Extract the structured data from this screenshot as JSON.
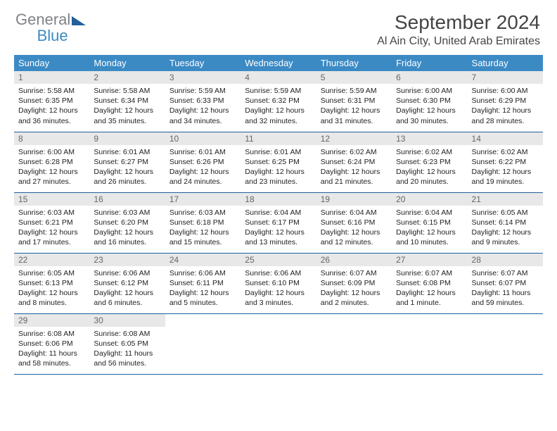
{
  "logo": {
    "line1": "General",
    "line2": "Blue"
  },
  "title": "September 2024",
  "location": "Al Ain City, United Arab Emirates",
  "colors": {
    "header_bg": "#3b8ac4",
    "header_text": "#ffffff",
    "daynum_bg": "#e8e8e8",
    "row_border": "#20619c",
    "body_text": "#222222"
  },
  "weekdays": [
    "Sunday",
    "Monday",
    "Tuesday",
    "Wednesday",
    "Thursday",
    "Friday",
    "Saturday"
  ],
  "weeks": [
    [
      {
        "n": "1",
        "sr": "Sunrise: 5:58 AM",
        "ss": "Sunset: 6:35 PM",
        "dl": "Daylight: 12 hours and 36 minutes."
      },
      {
        "n": "2",
        "sr": "Sunrise: 5:58 AM",
        "ss": "Sunset: 6:34 PM",
        "dl": "Daylight: 12 hours and 35 minutes."
      },
      {
        "n": "3",
        "sr": "Sunrise: 5:59 AM",
        "ss": "Sunset: 6:33 PM",
        "dl": "Daylight: 12 hours and 34 minutes."
      },
      {
        "n": "4",
        "sr": "Sunrise: 5:59 AM",
        "ss": "Sunset: 6:32 PM",
        "dl": "Daylight: 12 hours and 32 minutes."
      },
      {
        "n": "5",
        "sr": "Sunrise: 5:59 AM",
        "ss": "Sunset: 6:31 PM",
        "dl": "Daylight: 12 hours and 31 minutes."
      },
      {
        "n": "6",
        "sr": "Sunrise: 6:00 AM",
        "ss": "Sunset: 6:30 PM",
        "dl": "Daylight: 12 hours and 30 minutes."
      },
      {
        "n": "7",
        "sr": "Sunrise: 6:00 AM",
        "ss": "Sunset: 6:29 PM",
        "dl": "Daylight: 12 hours and 28 minutes."
      }
    ],
    [
      {
        "n": "8",
        "sr": "Sunrise: 6:00 AM",
        "ss": "Sunset: 6:28 PM",
        "dl": "Daylight: 12 hours and 27 minutes."
      },
      {
        "n": "9",
        "sr": "Sunrise: 6:01 AM",
        "ss": "Sunset: 6:27 PM",
        "dl": "Daylight: 12 hours and 26 minutes."
      },
      {
        "n": "10",
        "sr": "Sunrise: 6:01 AM",
        "ss": "Sunset: 6:26 PM",
        "dl": "Daylight: 12 hours and 24 minutes."
      },
      {
        "n": "11",
        "sr": "Sunrise: 6:01 AM",
        "ss": "Sunset: 6:25 PM",
        "dl": "Daylight: 12 hours and 23 minutes."
      },
      {
        "n": "12",
        "sr": "Sunrise: 6:02 AM",
        "ss": "Sunset: 6:24 PM",
        "dl": "Daylight: 12 hours and 21 minutes."
      },
      {
        "n": "13",
        "sr": "Sunrise: 6:02 AM",
        "ss": "Sunset: 6:23 PM",
        "dl": "Daylight: 12 hours and 20 minutes."
      },
      {
        "n": "14",
        "sr": "Sunrise: 6:02 AM",
        "ss": "Sunset: 6:22 PM",
        "dl": "Daylight: 12 hours and 19 minutes."
      }
    ],
    [
      {
        "n": "15",
        "sr": "Sunrise: 6:03 AM",
        "ss": "Sunset: 6:21 PM",
        "dl": "Daylight: 12 hours and 17 minutes."
      },
      {
        "n": "16",
        "sr": "Sunrise: 6:03 AM",
        "ss": "Sunset: 6:20 PM",
        "dl": "Daylight: 12 hours and 16 minutes."
      },
      {
        "n": "17",
        "sr": "Sunrise: 6:03 AM",
        "ss": "Sunset: 6:18 PM",
        "dl": "Daylight: 12 hours and 15 minutes."
      },
      {
        "n": "18",
        "sr": "Sunrise: 6:04 AM",
        "ss": "Sunset: 6:17 PM",
        "dl": "Daylight: 12 hours and 13 minutes."
      },
      {
        "n": "19",
        "sr": "Sunrise: 6:04 AM",
        "ss": "Sunset: 6:16 PM",
        "dl": "Daylight: 12 hours and 12 minutes."
      },
      {
        "n": "20",
        "sr": "Sunrise: 6:04 AM",
        "ss": "Sunset: 6:15 PM",
        "dl": "Daylight: 12 hours and 10 minutes."
      },
      {
        "n": "21",
        "sr": "Sunrise: 6:05 AM",
        "ss": "Sunset: 6:14 PM",
        "dl": "Daylight: 12 hours and 9 minutes."
      }
    ],
    [
      {
        "n": "22",
        "sr": "Sunrise: 6:05 AM",
        "ss": "Sunset: 6:13 PM",
        "dl": "Daylight: 12 hours and 8 minutes."
      },
      {
        "n": "23",
        "sr": "Sunrise: 6:06 AM",
        "ss": "Sunset: 6:12 PM",
        "dl": "Daylight: 12 hours and 6 minutes."
      },
      {
        "n": "24",
        "sr": "Sunrise: 6:06 AM",
        "ss": "Sunset: 6:11 PM",
        "dl": "Daylight: 12 hours and 5 minutes."
      },
      {
        "n": "25",
        "sr": "Sunrise: 6:06 AM",
        "ss": "Sunset: 6:10 PM",
        "dl": "Daylight: 12 hours and 3 minutes."
      },
      {
        "n": "26",
        "sr": "Sunrise: 6:07 AM",
        "ss": "Sunset: 6:09 PM",
        "dl": "Daylight: 12 hours and 2 minutes."
      },
      {
        "n": "27",
        "sr": "Sunrise: 6:07 AM",
        "ss": "Sunset: 6:08 PM",
        "dl": "Daylight: 12 hours and 1 minute."
      },
      {
        "n": "28",
        "sr": "Sunrise: 6:07 AM",
        "ss": "Sunset: 6:07 PM",
        "dl": "Daylight: 11 hours and 59 minutes."
      }
    ],
    [
      {
        "n": "29",
        "sr": "Sunrise: 6:08 AM",
        "ss": "Sunset: 6:06 PM",
        "dl": "Daylight: 11 hours and 58 minutes."
      },
      {
        "n": "30",
        "sr": "Sunrise: 6:08 AM",
        "ss": "Sunset: 6:05 PM",
        "dl": "Daylight: 11 hours and 56 minutes."
      },
      null,
      null,
      null,
      null,
      null
    ]
  ]
}
